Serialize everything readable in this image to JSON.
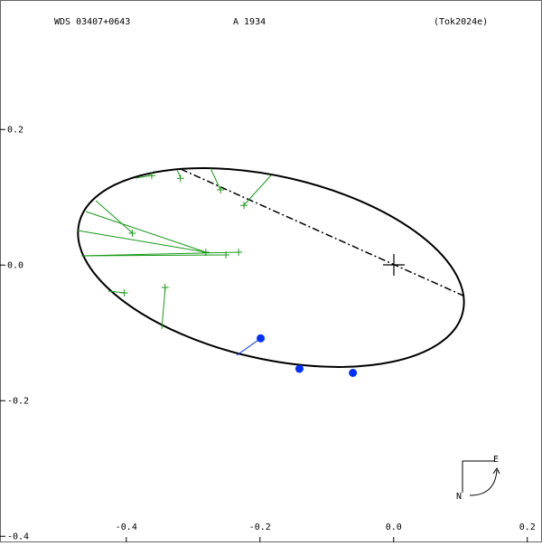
{
  "chart_data": {
    "type": "scatter",
    "header": [
      "WDS 03407+0643",
      "A  1934",
      "(Tok2024e)"
    ],
    "compass": {
      "east": "E",
      "north": "N"
    },
    "xlim": [
      -0.589,
      0.222
    ],
    "ylim": [
      -0.409,
      0.391
    ],
    "xticks": [
      -0.4,
      -0.2,
      {
        "value": 0,
        "label": "0.0"
      },
      0.2
    ],
    "yticks": [
      0.2,
      {
        "value": 0,
        "label": "0.0"
      },
      -0.2,
      -0.4
    ],
    "series": [
      {
        "color": "#1a9a1a",
        "marker": "plus",
        "x": [
          -0.362,
          -0.319,
          -0.259,
          -0.224,
          -0.391,
          -0.281,
          -0.232,
          -0.251,
          -0.403,
          -0.342
        ],
        "values": [
          0.132,
          0.128,
          0.111,
          0.088,
          0.047,
          0.019,
          0.019,
          0.015,
          -0.041,
          -0.033
        ]
      },
      {
        "color": "#0030ff",
        "marker": "dot",
        "x": [
          -0.199,
          -0.141,
          -0.061
        ],
        "values": [
          -0.108,
          -0.153,
          -0.159
        ]
      }
    ]
  }
}
